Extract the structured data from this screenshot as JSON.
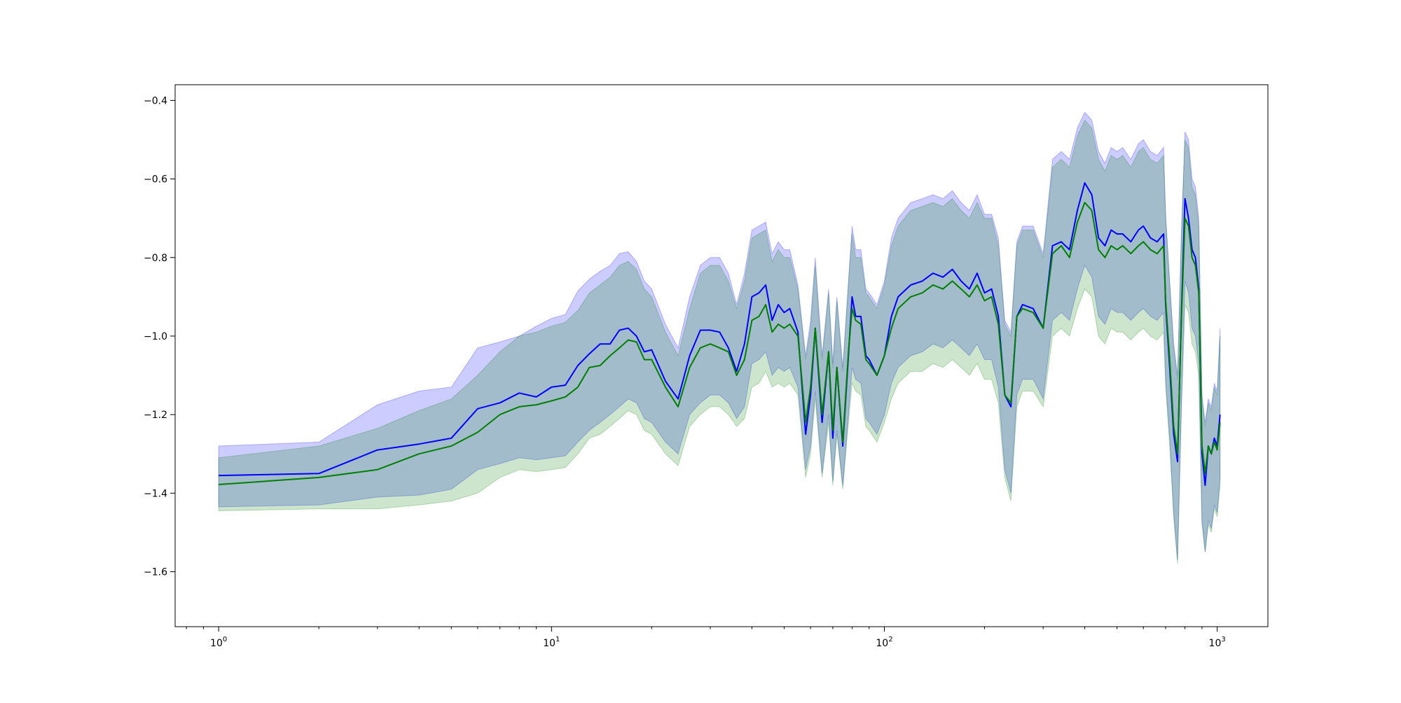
{
  "chart_data": {
    "type": "line",
    "title": "",
    "xlabel": "",
    "ylabel": "",
    "xscale": "log",
    "xlim": [
      0.74,
      1420
    ],
    "ylim": [
      -1.74,
      -0.36
    ],
    "grid": false,
    "legend": "none",
    "x_ticks": [
      {
        "value": 1,
        "base": "10",
        "exp": "0"
      },
      {
        "value": 10,
        "base": "10",
        "exp": "1"
      },
      {
        "value": 100,
        "base": "10",
        "exp": "2"
      },
      {
        "value": 1000,
        "base": "10",
        "exp": "3"
      }
    ],
    "y_ticks": [
      -0.4,
      -0.6,
      -0.8,
      -1.0,
      -1.2,
      -1.4,
      -1.6
    ],
    "y_tick_labels": [
      "−0.4",
      "−0.6",
      "−0.8",
      "−1.0",
      "−1.2",
      "−1.4",
      "−1.6"
    ],
    "x": [
      1,
      2,
      3,
      4,
      5,
      6,
      7,
      8,
      9,
      10,
      11,
      12,
      13,
      14,
      15,
      16,
      17,
      18,
      19,
      20,
      22,
      24,
      26,
      28,
      30,
      32,
      34,
      36,
      38,
      40,
      42,
      44,
      46,
      48,
      50,
      52,
      55,
      58,
      60,
      62,
      65,
      68,
      70,
      72,
      75,
      78,
      80,
      82,
      85,
      88,
      90,
      95,
      100,
      105,
      110,
      120,
      130,
      140,
      150,
      160,
      170,
      180,
      190,
      200,
      210,
      220,
      230,
      240,
      250,
      260,
      280,
      300,
      320,
      340,
      360,
      380,
      400,
      420,
      440,
      460,
      480,
      500,
      520,
      550,
      580,
      600,
      630,
      660,
      690,
      700,
      720,
      740,
      760,
      780,
      800,
      820,
      840,
      860,
      880,
      900,
      920,
      940,
      960,
      980,
      1000,
      1020
    ],
    "series": [
      {
        "color": "#0000ff",
        "values": [
          -1.355,
          -1.35,
          -1.29,
          -1.275,
          -1.26,
          -1.185,
          -1.17,
          -1.145,
          -1.155,
          -1.13,
          -1.125,
          -1.075,
          -1.045,
          -1.02,
          -1.02,
          -0.985,
          -0.98,
          -1.0,
          -1.04,
          -1.035,
          -1.115,
          -1.16,
          -1.05,
          -0.985,
          -0.985,
          -0.99,
          -1.03,
          -1.09,
          -1.02,
          -0.9,
          -0.89,
          -0.87,
          -0.96,
          -0.92,
          -0.94,
          -0.93,
          -0.99,
          -1.25,
          -1.15,
          -0.98,
          -1.22,
          -1.04,
          -1.26,
          -1.08,
          -1.28,
          -1.05,
          -0.9,
          -0.95,
          -0.95,
          -1.05,
          -1.06,
          -1.1,
          -1.05,
          -0.95,
          -0.9,
          -0.87,
          -0.86,
          -0.84,
          -0.85,
          -0.83,
          -0.86,
          -0.88,
          -0.84,
          -0.89,
          -0.88,
          -0.95,
          -1.15,
          -1.18,
          -0.95,
          -0.92,
          -0.93,
          -0.98,
          -0.77,
          -0.76,
          -0.78,
          -0.68,
          -0.61,
          -0.64,
          -0.75,
          -0.77,
          -0.73,
          -0.74,
          -0.74,
          -0.76,
          -0.73,
          -0.72,
          -0.75,
          -0.76,
          -0.74,
          -0.92,
          -1.08,
          -1.25,
          -1.32,
          -0.95,
          -0.65,
          -0.7,
          -0.78,
          -0.8,
          -0.88,
          -1.3,
          -1.38,
          -1.28,
          -1.3,
          -1.26,
          -1.28,
          -1.2
        ]
      },
      {
        "color": "#007f00",
        "values": [
          -1.378,
          -1.36,
          -1.34,
          -1.3,
          -1.28,
          -1.245,
          -1.2,
          -1.18,
          -1.175,
          -1.165,
          -1.155,
          -1.13,
          -1.08,
          -1.075,
          -1.05,
          -1.03,
          -1.01,
          -1.015,
          -1.06,
          -1.06,
          -1.13,
          -1.18,
          -1.08,
          -1.03,
          -1.02,
          -1.03,
          -1.04,
          -1.1,
          -1.06,
          -0.96,
          -0.95,
          -0.92,
          -0.99,
          -0.97,
          -0.98,
          -0.97,
          -1.0,
          -1.22,
          -1.13,
          -0.98,
          -1.2,
          -1.04,
          -1.24,
          -1.08,
          -1.27,
          -1.04,
          -0.93,
          -0.96,
          -0.97,
          -1.06,
          -1.07,
          -1.1,
          -1.05,
          -0.98,
          -0.93,
          -0.9,
          -0.89,
          -0.87,
          -0.88,
          -0.86,
          -0.88,
          -0.9,
          -0.87,
          -0.91,
          -0.9,
          -0.97,
          -1.15,
          -1.17,
          -0.95,
          -0.93,
          -0.94,
          -0.98,
          -0.79,
          -0.77,
          -0.8,
          -0.71,
          -0.66,
          -0.68,
          -0.78,
          -0.8,
          -0.77,
          -0.78,
          -0.77,
          -0.79,
          -0.77,
          -0.76,
          -0.78,
          -0.79,
          -0.77,
          -0.91,
          -1.06,
          -1.23,
          -1.3,
          -0.96,
          -0.7,
          -0.72,
          -0.8,
          -0.82,
          -0.89,
          -1.28,
          -1.35,
          -1.28,
          -1.3,
          -1.27,
          -1.29,
          -1.22
        ]
      }
    ],
    "bands": [
      {
        "color": "#0000ff",
        "opacity": 0.2,
        "upper": [
          -1.28,
          -1.27,
          -1.175,
          -1.14,
          -1.13,
          -1.03,
          -1.015,
          -1.0,
          -0.975,
          -0.955,
          -0.945,
          -0.885,
          -0.855,
          -0.835,
          -0.82,
          -0.79,
          -0.785,
          -0.81,
          -0.86,
          -0.88,
          -0.97,
          -1.03,
          -0.9,
          -0.82,
          -0.8,
          -0.8,
          -0.84,
          -0.92,
          -0.84,
          -0.73,
          -0.72,
          -0.71,
          -0.79,
          -0.76,
          -0.78,
          -0.78,
          -0.87,
          -1.05,
          -0.96,
          -0.8,
          -1.05,
          -0.88,
          -1.07,
          -0.9,
          -1.08,
          -0.86,
          -0.72,
          -0.78,
          -0.78,
          -0.88,
          -0.89,
          -0.92,
          -0.86,
          -0.75,
          -0.7,
          -0.66,
          -0.65,
          -0.64,
          -0.65,
          -0.63,
          -0.66,
          -0.68,
          -0.64,
          -0.69,
          -0.69,
          -0.75,
          -0.96,
          -0.99,
          -0.76,
          -0.72,
          -0.72,
          -0.79,
          -0.55,
          -0.53,
          -0.55,
          -0.47,
          -0.43,
          -0.45,
          -0.53,
          -0.56,
          -0.52,
          -0.53,
          -0.52,
          -0.55,
          -0.51,
          -0.5,
          -0.53,
          -0.54,
          -0.52,
          -0.69,
          -0.86,
          -1.02,
          -1.1,
          -0.74,
          -0.48,
          -0.5,
          -0.6,
          -0.62,
          -0.7,
          -1.15,
          -1.22,
          -1.16,
          -1.18,
          -1.12,
          -1.14,
          -0.98
        ]
      },
      {
        "color": "#007f00",
        "opacity": 0.2,
        "upper": [
          -1.31,
          -1.28,
          -1.235,
          -1.19,
          -1.16,
          -1.1,
          -1.04,
          -1.0,
          -0.99,
          -0.975,
          -0.965,
          -0.935,
          -0.89,
          -0.87,
          -0.85,
          -0.82,
          -0.81,
          -0.83,
          -0.88,
          -0.9,
          -0.99,
          -1.05,
          -0.93,
          -0.84,
          -0.82,
          -0.82,
          -0.86,
          -0.93,
          -0.86,
          -0.75,
          -0.74,
          -0.73,
          -0.81,
          -0.78,
          -0.8,
          -0.8,
          -0.88,
          -1.06,
          -0.98,
          -0.82,
          -1.06,
          -0.89,
          -1.08,
          -0.91,
          -1.09,
          -0.87,
          -0.74,
          -0.8,
          -0.8,
          -0.89,
          -0.9,
          -0.93,
          -0.87,
          -0.77,
          -0.72,
          -0.68,
          -0.67,
          -0.66,
          -0.67,
          -0.65,
          -0.68,
          -0.7,
          -0.66,
          -0.7,
          -0.7,
          -0.77,
          -0.97,
          -1.0,
          -0.77,
          -0.73,
          -0.73,
          -0.8,
          -0.57,
          -0.55,
          -0.57,
          -0.49,
          -0.45,
          -0.47,
          -0.55,
          -0.58,
          -0.54,
          -0.55,
          -0.54,
          -0.57,
          -0.53,
          -0.52,
          -0.55,
          -0.56,
          -0.54,
          -0.7,
          -0.87,
          -1.03,
          -1.11,
          -0.75,
          -0.5,
          -0.52,
          -0.62,
          -0.64,
          -0.72,
          -1.16,
          -1.23,
          -1.17,
          -1.19,
          -1.13,
          -1.15,
          -1.0
        ],
        "lower": [
          -1.445,
          -1.44,
          -1.44,
          -1.43,
          -1.42,
          -1.4,
          -1.36,
          -1.34,
          -1.345,
          -1.34,
          -1.335,
          -1.3,
          -1.26,
          -1.25,
          -1.23,
          -1.21,
          -1.19,
          -1.2,
          -1.24,
          -1.25,
          -1.3,
          -1.33,
          -1.23,
          -1.2,
          -1.18,
          -1.18,
          -1.2,
          -1.23,
          -1.21,
          -1.13,
          -1.12,
          -1.09,
          -1.13,
          -1.12,
          -1.13,
          -1.12,
          -1.15,
          -1.36,
          -1.3,
          -1.16,
          -1.36,
          -1.22,
          -1.38,
          -1.25,
          -1.39,
          -1.22,
          -1.12,
          -1.14,
          -1.15,
          -1.23,
          -1.24,
          -1.27,
          -1.22,
          -1.16,
          -1.12,
          -1.09,
          -1.09,
          -1.07,
          -1.08,
          -1.06,
          -1.08,
          -1.1,
          -1.07,
          -1.11,
          -1.11,
          -1.17,
          -1.36,
          -1.42,
          -1.18,
          -1.14,
          -1.14,
          -1.18,
          -1.0,
          -0.98,
          -1.0,
          -0.93,
          -0.88,
          -0.9,
          -1.0,
          -1.02,
          -0.98,
          -0.99,
          -0.99,
          -1.01,
          -0.99,
          -0.98,
          -1.0,
          -1.01,
          -0.99,
          -1.13,
          -1.28,
          -1.46,
          -1.58,
          -1.2,
          -0.92,
          -0.94,
          -1.02,
          -1.04,
          -1.1,
          -1.48,
          -1.55,
          -1.48,
          -1.5,
          -1.44,
          -1.46,
          -1.38
        ]
      },
      {
        "color": "#0000ff",
        "opacity": 0.2,
        "lower": [
          -1.435,
          -1.43,
          -1.41,
          -1.405,
          -1.39,
          -1.34,
          -1.325,
          -1.31,
          -1.315,
          -1.31,
          -1.305,
          -1.27,
          -1.24,
          -1.22,
          -1.2,
          -1.18,
          -1.16,
          -1.17,
          -1.21,
          -1.22,
          -1.27,
          -1.3,
          -1.2,
          -1.17,
          -1.15,
          -1.15,
          -1.17,
          -1.21,
          -1.18,
          -1.07,
          -1.06,
          -1.04,
          -1.1,
          -1.08,
          -1.09,
          -1.08,
          -1.13,
          -1.34,
          -1.28,
          -1.14,
          -1.35,
          -1.2,
          -1.37,
          -1.24,
          -1.38,
          -1.2,
          -1.08,
          -1.11,
          -1.12,
          -1.21,
          -1.22,
          -1.25,
          -1.2,
          -1.12,
          -1.08,
          -1.05,
          -1.04,
          -1.02,
          -1.03,
          -1.01,
          -1.03,
          -1.05,
          -1.02,
          -1.06,
          -1.06,
          -1.13,
          -1.34,
          -1.4,
          -1.15,
          -1.11,
          -1.11,
          -1.16,
          -0.96,
          -0.94,
          -0.96,
          -0.88,
          -0.82,
          -0.85,
          -0.95,
          -0.97,
          -0.93,
          -0.94,
          -0.94,
          -0.96,
          -0.94,
          -0.93,
          -0.95,
          -0.96,
          -0.94,
          -1.11,
          -1.26,
          -1.45,
          -1.57,
          -1.18,
          -0.86,
          -0.89,
          -0.98,
          -1.0,
          -1.07,
          -1.47,
          -1.55,
          -1.47,
          -1.49,
          -1.43,
          -1.45,
          -1.36
        ]
      }
    ],
    "colors": {
      "blue_line": "#0000ff",
      "green_line": "#007f00",
      "blue_band": "#0000ff",
      "green_band": "#007f00",
      "overlap_band": "#9fb3d3"
    }
  }
}
